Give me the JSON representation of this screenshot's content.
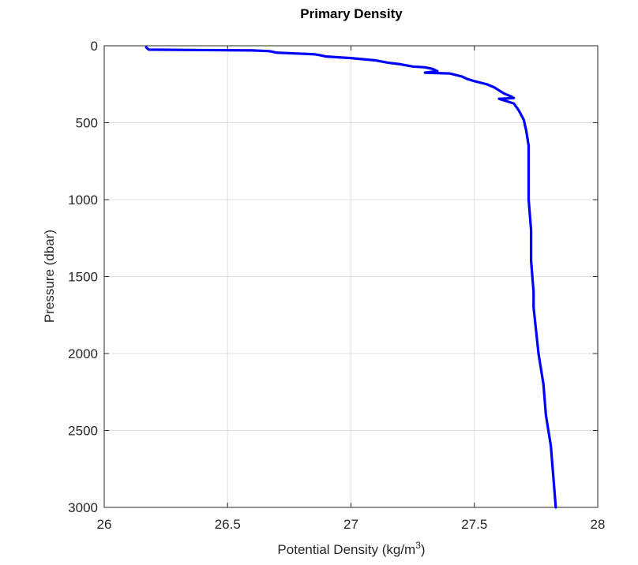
{
  "chart_data": {
    "type": "line",
    "title": "Primary Density",
    "xlabel_main": "Potential Density (kg/m",
    "xlabel_sup": "3",
    "xlabel_tail": ")",
    "ylabel": "Pressure (dbar)",
    "xlim": [
      26,
      28
    ],
    "ylim": [
      0,
      3000
    ],
    "y_reversed": true,
    "grid": true,
    "xticks": [
      26,
      26.5,
      27,
      27.5,
      28
    ],
    "xtick_labels": [
      "26",
      "26.5",
      "27",
      "27.5",
      "28"
    ],
    "yticks": [
      0,
      500,
      1000,
      1500,
      2000,
      2500,
      3000
    ],
    "ytick_labels": [
      "0",
      "500",
      "1000",
      "1500",
      "2000",
      "2500",
      "3000"
    ],
    "series": [
      {
        "color": "#0000ff",
        "x": [
          26.17,
          26.18,
          26.4,
          26.6,
          26.67,
          26.7,
          26.85,
          26.87,
          26.9,
          27.0,
          27.1,
          27.15,
          27.2,
          27.25,
          27.3,
          27.33,
          27.35,
          27.3,
          27.4,
          27.45,
          27.47,
          27.5,
          27.55,
          27.58,
          27.6,
          27.62,
          27.65,
          27.66,
          27.6,
          27.66,
          27.68,
          27.7,
          27.71,
          27.72,
          27.72,
          27.72,
          27.73,
          27.73,
          27.74,
          27.74,
          27.75,
          27.76,
          27.78,
          27.79,
          27.81,
          27.82,
          27.83
        ],
        "y": [
          10,
          25,
          28,
          30,
          35,
          45,
          55,
          60,
          70,
          80,
          95,
          110,
          120,
          135,
          140,
          150,
          165,
          175,
          180,
          200,
          215,
          230,
          250,
          270,
          290,
          310,
          330,
          340,
          345,
          375,
          420,
          480,
          550,
          650,
          800,
          1000,
          1200,
          1400,
          1600,
          1700,
          1850,
          2000,
          2200,
          2400,
          2600,
          2800,
          3000
        ]
      }
    ]
  }
}
